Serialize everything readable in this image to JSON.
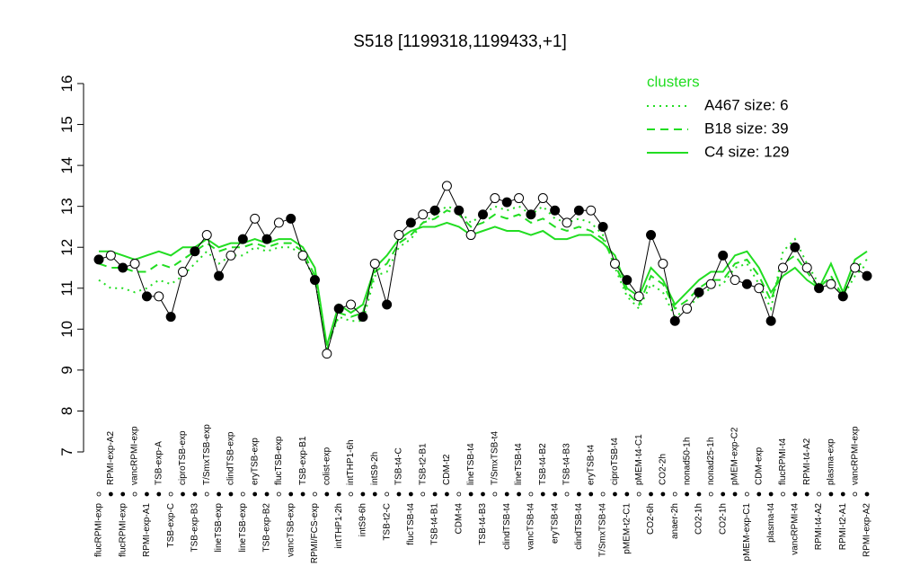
{
  "chart_data": {
    "type": "line",
    "title": "S518 [1199318,1199433,+1]",
    "categories": [
      "flucRPMI-exp",
      "RPMI-exp-A2",
      "flucRPMI-exp",
      "vancRPMI-exp",
      "RPMI-exp-A1",
      "TSB-exp-A",
      "TSB-exp-C",
      "ciproTSB-exp",
      "TSB-exp-B3",
      "T/SmxTSB-exp",
      "lineTSB-exp",
      "clindTSB-exp",
      "lineTSB-exp",
      "eryTSB-exp",
      "TSB-exp-B2",
      "flucTSB-exp",
      "vancTSB-exp",
      "TSB-exp-B1",
      "RPMI/FCS-exp",
      "colist-exp",
      "intTHP1-2h",
      "intTHP1-6h",
      "intS9-6h",
      "intS9-2h",
      "TSB-t2-C",
      "TSB-t4-C",
      "flucTSB-t4",
      "TSB-t2-B1",
      "TSB-t4-B1",
      "CDM-t2",
      "CDM-t4",
      "lineTSB-t4",
      "TSB-t4-B3",
      "T/SmxTSB-t4",
      "clindTSB-t4",
      "lineTSB-t4",
      "vancTSB-t4",
      "TSB-t4-B2",
      "eryTSB-t4",
      "TSB-t4-B3",
      "clindTSB-t4",
      "eryTSB-t4",
      "T/SmxTSB-t4",
      "ciproTSB-t4",
      "pMEM-t2-C1",
      "pMEM-t4-C1",
      "CO2-6h",
      "CO2-2h",
      "anaer-2h",
      "nonad50-1h",
      "CO2-1h",
      "nonad25-1h",
      "CO2-1h",
      "pMEM-exp-C2",
      "pMEM-exp-C1",
      "CDM-exp",
      "plasma-t4",
      "flucRPMI-t4",
      "vancRPMI-t4",
      "RPMI-t4-A2",
      "RPMI-t4-A2",
      "plasma-exp",
      "RPMI-t2-A1",
      "vancRPMI-exp",
      "RPMI-exp-A2"
    ],
    "values": [
      11.7,
      11.8,
      11.5,
      11.6,
      10.8,
      10.8,
      10.3,
      11.4,
      11.9,
      12.3,
      11.3,
      11.8,
      12.2,
      12.7,
      12.2,
      12.6,
      12.7,
      11.8,
      11.2,
      9.4,
      10.5,
      10.6,
      10.3,
      11.6,
      10.6,
      12.3,
      12.6,
      12.8,
      12.9,
      13.5,
      12.9,
      12.3,
      12.8,
      13.2,
      13.1,
      13.2,
      12.8,
      13.2,
      12.9,
      12.6,
      12.9,
      12.9,
      12.5,
      11.6,
      11.2,
      10.8,
      12.3,
      11.6,
      10.2,
      10.5,
      10.9,
      11.1,
      11.8,
      11.2,
      11.1,
      11.0,
      10.2,
      11.5,
      12.0,
      11.5,
      11.0,
      11.1,
      10.8,
      11.5,
      11.3
    ],
    "color": "#000000",
    "series": [
      {
        "name": "A467 size: 6",
        "style": "dotted",
        "color": "#22dd22",
        "values": [
          11.2,
          11.0,
          11.0,
          10.9,
          11.0,
          11.2,
          11.1,
          11.3,
          11.6,
          11.9,
          11.6,
          11.8,
          11.8,
          12.0,
          11.9,
          12.0,
          12.0,
          11.8,
          11.2,
          9.6,
          10.3,
          10.2,
          10.2,
          11.3,
          11.4,
          12.0,
          12.2,
          12.6,
          12.8,
          13.0,
          12.9,
          12.6,
          12.8,
          13.0,
          12.9,
          13.0,
          12.8,
          13.0,
          12.7,
          12.6,
          12.7,
          12.6,
          12.3,
          11.5,
          10.8,
          10.5,
          11.1,
          10.9,
          10.3,
          10.5,
          10.8,
          11.0,
          11.1,
          11.5,
          11.6,
          11.1,
          10.5,
          11.9,
          12.2,
          11.6,
          11.1,
          11.2,
          10.8,
          11.3,
          11.6
        ]
      },
      {
        "name": "B18 size: 39",
        "style": "dashed",
        "color": "#22dd22",
        "values": [
          11.6,
          11.5,
          11.5,
          11.4,
          11.4,
          11.6,
          11.5,
          11.7,
          11.9,
          12.1,
          11.9,
          12.0,
          12.0,
          12.1,
          12.0,
          12.1,
          12.1,
          11.9,
          11.3,
          9.5,
          10.4,
          10.3,
          10.4,
          11.4,
          11.6,
          12.1,
          12.3,
          12.6,
          12.7,
          12.9,
          12.8,
          12.5,
          12.6,
          12.8,
          12.7,
          12.8,
          12.6,
          12.7,
          12.5,
          12.4,
          12.5,
          12.4,
          12.2,
          11.6,
          10.9,
          10.6,
          11.3,
          11.1,
          10.5,
          10.7,
          11.0,
          11.2,
          11.2,
          11.6,
          11.7,
          11.3,
          10.7,
          11.6,
          11.8,
          11.4,
          11.0,
          11.3,
          10.8,
          11.5,
          11.7
        ]
      },
      {
        "name": "C4 size: 129",
        "style": "solid",
        "color": "#22dd22",
        "values": [
          11.9,
          11.9,
          11.8,
          11.7,
          11.8,
          11.9,
          11.8,
          12.0,
          12.0,
          12.2,
          12.0,
          12.1,
          12.1,
          12.2,
          12.1,
          12.2,
          12.2,
          12.0,
          11.5,
          9.6,
          10.6,
          10.4,
          10.6,
          11.5,
          11.8,
          12.2,
          12.4,
          12.5,
          12.5,
          12.6,
          12.5,
          12.3,
          12.4,
          12.5,
          12.4,
          12.4,
          12.3,
          12.4,
          12.2,
          12.2,
          12.3,
          12.3,
          12.1,
          11.8,
          11.0,
          10.8,
          11.5,
          11.2,
          10.6,
          10.9,
          11.2,
          11.4,
          11.4,
          11.8,
          11.9,
          11.5,
          10.9,
          11.3,
          11.5,
          11.2,
          11.0,
          11.6,
          10.9,
          11.7,
          11.9
        ]
      }
    ],
    "legend_title": "clusters",
    "legend": "top-right",
    "ylim": [
      7,
      16
    ],
    "yticks": [
      7,
      8,
      9,
      10,
      11,
      12,
      13,
      14,
      15,
      16
    ]
  }
}
